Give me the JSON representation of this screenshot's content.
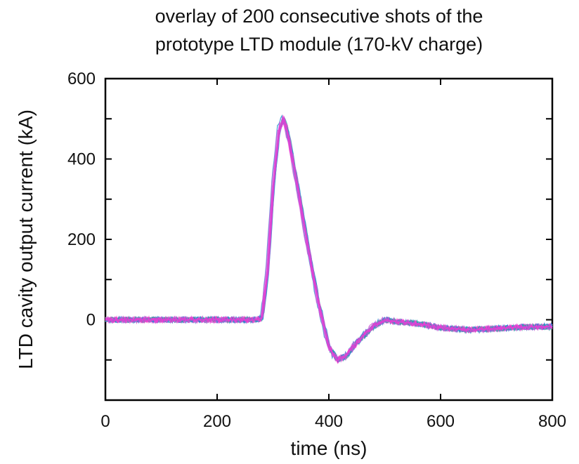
{
  "chart_data": {
    "type": "line",
    "title_lines": [
      "overlay of 200 consecutive shots of the",
      "prototype LTD module (170-kV charge)"
    ],
    "xlabel": "time (ns)",
    "ylabel": "LTD cavity output current (kA)",
    "xlim": [
      0,
      800
    ],
    "ylim": [
      -200,
      600
    ],
    "x_ticks": [
      0,
      200,
      400,
      600,
      800
    ],
    "y_ticks_labeled": [
      0,
      200,
      400,
      600
    ],
    "y_ticks_minor": [
      -100,
      100,
      300,
      500
    ],
    "grid": false,
    "legend": "none",
    "colors": [
      "#1f8fd0",
      "#2aa7a0",
      "#d24fd8",
      "#ff33cc",
      "#3a6fd8",
      "#e06bd0"
    ],
    "series": [
      {
        "values": [
          [
            0,
            0
          ],
          [
            100,
            0
          ],
          [
            200,
            0
          ],
          [
            270,
            0
          ],
          [
            280,
            5
          ],
          [
            290,
            120
          ],
          [
            300,
            330
          ],
          [
            310,
            470
          ],
          [
            318,
            500
          ],
          [
            325,
            470
          ],
          [
            340,
            360
          ],
          [
            360,
            200
          ],
          [
            380,
            50
          ],
          [
            400,
            -70
          ],
          [
            415,
            -100
          ],
          [
            430,
            -90
          ],
          [
            450,
            -55
          ],
          [
            480,
            -15
          ],
          [
            500,
            0
          ],
          [
            520,
            -5
          ],
          [
            560,
            -10
          ],
          [
            600,
            -20
          ],
          [
            650,
            -25
          ],
          [
            700,
            -22
          ],
          [
            750,
            -18
          ],
          [
            800,
            -17
          ]
        ]
      }
    ]
  }
}
